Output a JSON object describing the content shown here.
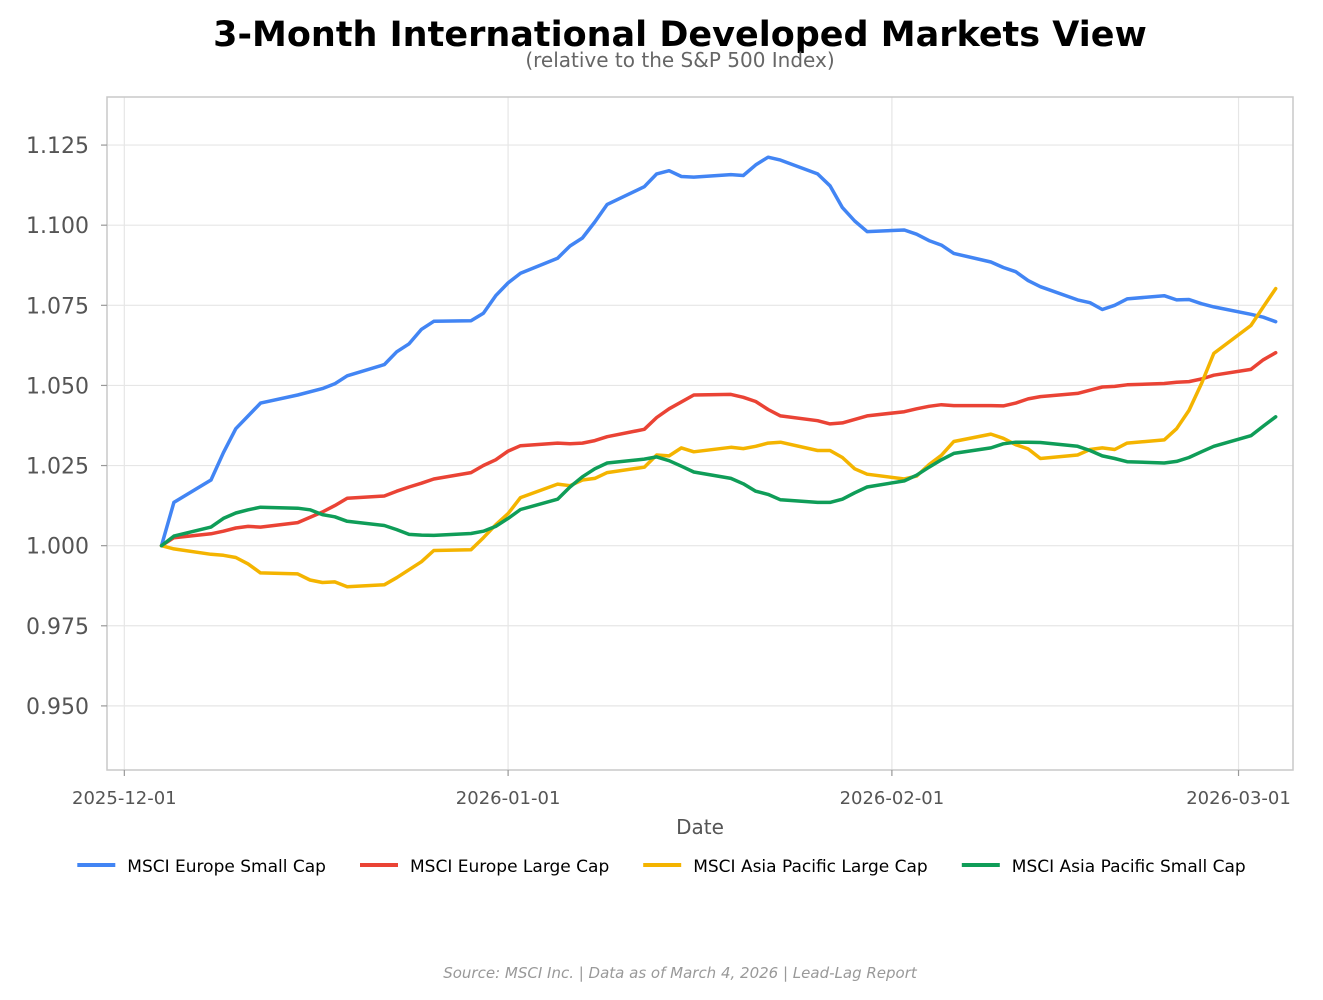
{
  "chart_data": {
    "type": "line",
    "title": "3-Month International Developed Markets View",
    "subtitle": "(relative to the S&P 500 Index)",
    "xlabel": "Date",
    "ylabel": "",
    "ylim": [
      0.93,
      1.14
    ],
    "yticks": [
      0.95,
      0.975,
      1.0,
      1.025,
      1.05,
      1.075,
      1.1,
      1.125
    ],
    "ytick_labels": [
      "0.950",
      "0.975",
      "1.000",
      "1.025",
      "1.050",
      "1.075",
      "1.100",
      "1.125"
    ],
    "xlim": [
      -1.4,
      94.4
    ],
    "xticks": [
      0,
      31,
      62,
      90
    ],
    "xtick_labels": [
      "2025-12-01",
      "2026-01-01",
      "2026-02-01",
      "2026-03-01"
    ],
    "x_unit": "days since 2025-12-01",
    "grid": true,
    "legend_position": "bottom",
    "series": [
      {
        "name": "MSCI Europe Small Cap",
        "color": "#4285f4",
        "points": [
          [
            3,
            1.0
          ],
          [
            4,
            1.0135
          ],
          [
            7,
            1.0205
          ],
          [
            8,
            1.029
          ],
          [
            9,
            1.0365
          ],
          [
            11,
            1.0445
          ],
          [
            14,
            1.047
          ],
          [
            16,
            1.049
          ],
          [
            17,
            1.0505
          ],
          [
            18,
            1.053
          ],
          [
            21,
            1.0565
          ],
          [
            22,
            1.0605
          ],
          [
            23,
            1.063
          ],
          [
            24,
            1.0675
          ],
          [
            25,
            1.07
          ],
          [
            28,
            1.0702
          ],
          [
            29,
            1.0725
          ],
          [
            30,
            1.078
          ],
          [
            31,
            1.082
          ],
          [
            32,
            1.085
          ],
          [
            35,
            1.0897
          ],
          [
            36,
            1.0935
          ],
          [
            37,
            1.096
          ],
          [
            38,
            1.101
          ],
          [
            39,
            1.1065
          ],
          [
            42,
            1.112
          ],
          [
            43,
            1.116
          ],
          [
            44,
            1.117
          ],
          [
            45,
            1.1152
          ],
          [
            46,
            1.115
          ],
          [
            49,
            1.1158
          ],
          [
            50,
            1.1155
          ],
          [
            51,
            1.1188
          ],
          [
            52,
            1.1212
          ],
          [
            53,
            1.1203
          ],
          [
            56,
            1.116
          ],
          [
            57,
            1.1123
          ],
          [
            58,
            1.1055
          ],
          [
            59,
            1.1013
          ],
          [
            60,
            1.098
          ],
          [
            63,
            1.0985
          ],
          [
            64,
            1.0972
          ],
          [
            65,
            1.0952
          ],
          [
            66,
            1.0938
          ],
          [
            67,
            1.0912
          ],
          [
            70,
            1.0885
          ],
          [
            71,
            1.0868
          ],
          [
            72,
            1.0855
          ],
          [
            73,
            1.0827
          ],
          [
            74,
            1.0808
          ],
          [
            77,
            1.0767
          ],
          [
            78,
            1.0758
          ],
          [
            79,
            1.0737
          ],
          [
            80,
            1.075
          ],
          [
            81,
            1.077
          ],
          [
            84,
            1.078
          ],
          [
            85,
            1.0767
          ],
          [
            86,
            1.0768
          ],
          [
            87,
            1.0755
          ],
          [
            88,
            1.0745
          ],
          [
            91,
            1.0722
          ],
          [
            92,
            1.0713
          ],
          [
            93,
            1.0699
          ]
        ]
      },
      {
        "name": "MSCI Europe Large Cap",
        "color": "#ea4335",
        "points": [
          [
            3,
            1.0
          ],
          [
            4,
            1.0025
          ],
          [
            7,
            1.0037
          ],
          [
            8,
            1.0045
          ],
          [
            9,
            1.0055
          ],
          [
            10,
            1.006
          ],
          [
            11,
            1.0058
          ],
          [
            14,
            1.0072
          ],
          [
            16,
            1.0105
          ],
          [
            17,
            1.0125
          ],
          [
            18,
            1.0148
          ],
          [
            21,
            1.0155
          ],
          [
            22,
            1.017
          ],
          [
            23,
            1.0183
          ],
          [
            24,
            1.0195
          ],
          [
            25,
            1.0208
          ],
          [
            28,
            1.0228
          ],
          [
            29,
            1.025
          ],
          [
            30,
            1.0268
          ],
          [
            31,
            1.0295
          ],
          [
            32,
            1.0312
          ],
          [
            35,
            1.032
          ],
          [
            36,
            1.0318
          ],
          [
            37,
            1.032
          ],
          [
            38,
            1.0328
          ],
          [
            39,
            1.034
          ],
          [
            42,
            1.0363
          ],
          [
            43,
            1.04
          ],
          [
            44,
            1.0427
          ],
          [
            46,
            1.047
          ],
          [
            49,
            1.0472
          ],
          [
            50,
            1.0463
          ],
          [
            51,
            1.045
          ],
          [
            52,
            1.0425
          ],
          [
            53,
            1.0405
          ],
          [
            56,
            1.039
          ],
          [
            57,
            1.038
          ],
          [
            58,
            1.0383
          ],
          [
            60,
            1.0405
          ],
          [
            63,
            1.0418
          ],
          [
            64,
            1.0427
          ],
          [
            65,
            1.0435
          ],
          [
            66,
            1.044
          ],
          [
            67,
            1.0437
          ],
          [
            70,
            1.0437
          ],
          [
            71,
            1.0436
          ],
          [
            72,
            1.0445
          ],
          [
            73,
            1.0458
          ],
          [
            74,
            1.0465
          ],
          [
            77,
            1.0475
          ],
          [
            78,
            1.0485
          ],
          [
            79,
            1.0495
          ],
          [
            80,
            1.0497
          ],
          [
            81,
            1.0502
          ],
          [
            84,
            1.0506
          ],
          [
            85,
            1.051
          ],
          [
            86,
            1.0512
          ],
          [
            87,
            1.052
          ],
          [
            88,
            1.0532
          ],
          [
            91,
            1.055
          ],
          [
            92,
            1.058
          ],
          [
            93,
            1.0602
          ]
        ]
      },
      {
        "name": "MSCI Asia Pacific Large Cap",
        "color": "#f4b400",
        "points": [
          [
            3,
            1.0
          ],
          [
            4,
            0.999
          ],
          [
            7,
            0.9973
          ],
          [
            8,
            0.997
          ],
          [
            9,
            0.9963
          ],
          [
            10,
            0.9943
          ],
          [
            11,
            0.9915
          ],
          [
            14,
            0.9912
          ],
          [
            15,
            0.9893
          ],
          [
            16,
            0.9885
          ],
          [
            17,
            0.9887
          ],
          [
            18,
            0.9872
          ],
          [
            21,
            0.9878
          ],
          [
            22,
            0.99
          ],
          [
            23,
            0.9925
          ],
          [
            24,
            0.995
          ],
          [
            25,
            0.9985
          ],
          [
            28,
            0.9987
          ],
          [
            29,
            1.0025
          ],
          [
            30,
            1.0065
          ],
          [
            31,
            1.01
          ],
          [
            32,
            1.015
          ],
          [
            35,
            1.0192
          ],
          [
            36,
            1.0187
          ],
          [
            37,
            1.0205
          ],
          [
            38,
            1.021
          ],
          [
            39,
            1.0228
          ],
          [
            42,
            1.0245
          ],
          [
            43,
            1.0283
          ],
          [
            44,
            1.028
          ],
          [
            45,
            1.0305
          ],
          [
            46,
            1.0293
          ],
          [
            49,
            1.0307
          ],
          [
            50,
            1.0303
          ],
          [
            51,
            1.031
          ],
          [
            52,
            1.032
          ],
          [
            53,
            1.0323
          ],
          [
            56,
            1.0297
          ],
          [
            57,
            1.0297
          ],
          [
            58,
            1.0275
          ],
          [
            59,
            1.024
          ],
          [
            60,
            1.0223
          ],
          [
            63,
            1.0208
          ],
          [
            64,
            1.0217
          ],
          [
            65,
            1.0253
          ],
          [
            66,
            1.0282
          ],
          [
            67,
            1.0325
          ],
          [
            70,
            1.0348
          ],
          [
            71,
            1.0335
          ],
          [
            72,
            1.0315
          ],
          [
            73,
            1.0302
          ],
          [
            74,
            1.0272
          ],
          [
            77,
            1.0283
          ],
          [
            78,
            1.03
          ],
          [
            79,
            1.0305
          ],
          [
            80,
            1.03
          ],
          [
            81,
            1.032
          ],
          [
            84,
            1.033
          ],
          [
            85,
            1.0365
          ],
          [
            86,
            1.0422
          ],
          [
            87,
            1.0505
          ],
          [
            88,
            1.06
          ],
          [
            91,
            1.0687
          ],
          [
            92,
            1.0745
          ],
          [
            93,
            1.0802
          ]
        ]
      },
      {
        "name": "MSCI Asia Pacific Small Cap",
        "color": "#0f9d58",
        "points": [
          [
            3,
            1.0
          ],
          [
            4,
            1.003
          ],
          [
            7,
            1.0058
          ],
          [
            8,
            1.0085
          ],
          [
            9,
            1.0102
          ],
          [
            10,
            1.0112
          ],
          [
            11,
            1.012
          ],
          [
            14,
            1.0117
          ],
          [
            15,
            1.0112
          ],
          [
            16,
            1.0097
          ],
          [
            17,
            1.009
          ],
          [
            18,
            1.0076
          ],
          [
            21,
            1.0063
          ],
          [
            22,
            1.005
          ],
          [
            23,
            1.0035
          ],
          [
            24,
            1.0033
          ],
          [
            25,
            1.0032
          ],
          [
            28,
            1.0038
          ],
          [
            29,
            1.0045
          ],
          [
            30,
            1.006
          ],
          [
            31,
            1.0085
          ],
          [
            32,
            1.0113
          ],
          [
            35,
            1.0145
          ],
          [
            36,
            1.0183
          ],
          [
            37,
            1.0215
          ],
          [
            38,
            1.024
          ],
          [
            39,
            1.0258
          ],
          [
            42,
            1.027
          ],
          [
            43,
            1.0277
          ],
          [
            44,
            1.0265
          ],
          [
            45,
            1.0248
          ],
          [
            46,
            1.023
          ],
          [
            49,
            1.021
          ],
          [
            50,
            1.0193
          ],
          [
            51,
            1.017
          ],
          [
            52,
            1.016
          ],
          [
            53,
            1.0143
          ],
          [
            56,
            1.0135
          ],
          [
            57,
            1.0135
          ],
          [
            58,
            1.0145
          ],
          [
            59,
            1.0165
          ],
          [
            60,
            1.0183
          ],
          [
            63,
            1.0202
          ],
          [
            64,
            1.022
          ],
          [
            65,
            1.0245
          ],
          [
            66,
            1.0268
          ],
          [
            67,
            1.0288
          ],
          [
            70,
            1.0305
          ],
          [
            71,
            1.0318
          ],
          [
            72,
            1.0323
          ],
          [
            73,
            1.0323
          ],
          [
            74,
            1.0322
          ],
          [
            77,
            1.031
          ],
          [
            78,
            1.0297
          ],
          [
            79,
            1.028
          ],
          [
            80,
            1.0272
          ],
          [
            81,
            1.0262
          ],
          [
            84,
            1.0258
          ],
          [
            85,
            1.0263
          ],
          [
            86,
            1.0275
          ],
          [
            87,
            1.0293
          ],
          [
            88,
            1.031
          ],
          [
            91,
            1.0343
          ],
          [
            92,
            1.0373
          ],
          [
            93,
            1.0402
          ]
        ]
      }
    ]
  },
  "footer": {
    "source_text": "Source: MSCI Inc.  |  Data as of March 4, 2026  |  Lead-Lag Report"
  }
}
